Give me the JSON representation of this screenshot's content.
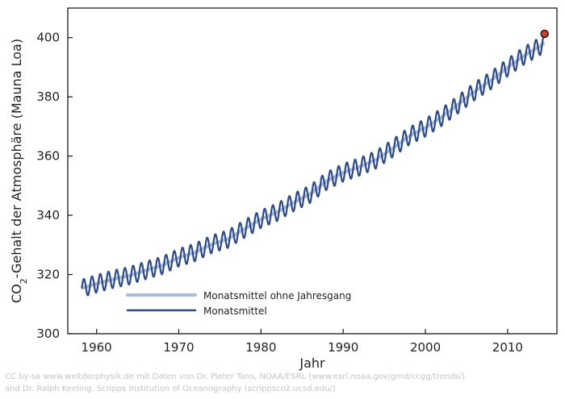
{
  "chart_data": {
    "type": "line",
    "title": "",
    "xlabel": "Jahr",
    "ylabel_prefix": "CO",
    "ylabel_sub": "2",
    "ylabel_suffix": "-Gehalt der Atmosphäre (Mauna Loa)",
    "xlim": [
      1956.5,
      2016.0
    ],
    "ylim": [
      300,
      410
    ],
    "x_ticks": [
      1960,
      1970,
      1980,
      1990,
      2000,
      2010
    ],
    "x_tick_labels": [
      "1960",
      "1970",
      "1980",
      "1990",
      "2000",
      "2010"
    ],
    "y_ticks": [
      300,
      320,
      340,
      360,
      380,
      400
    ],
    "y_tick_labels": [
      "300",
      "320",
      "340",
      "360",
      "380",
      "400"
    ],
    "grid": false,
    "legend": {
      "position": "lower-left",
      "entries": [
        {
          "label": "Monatsmittel ohne Jahresgang",
          "color": "#aabbe0"
        },
        {
          "label": "Monatsmittel",
          "color": "#2a4a8c"
        }
      ]
    },
    "series": [
      {
        "name": "Monatsmittel ohne Jahresgang",
        "color": "#aabbe0",
        "x": [
          1958.2,
          1960,
          1962,
          1964,
          1966,
          1968,
          1970,
          1972,
          1974,
          1976,
          1978,
          1980,
          1982,
          1984,
          1986,
          1988,
          1990,
          1992,
          1994,
          1996,
          1998,
          2000,
          2002,
          2004,
          2006,
          2008,
          2010,
          2012,
          2014,
          2014.5
        ],
        "values": [
          315.3,
          316.9,
          318.4,
          319.6,
          321.4,
          323.1,
          325.7,
          327.5,
          330.2,
          332.0,
          335.4,
          338.7,
          341.1,
          344.4,
          347.2,
          351.6,
          354.4,
          356.4,
          358.8,
          362.6,
          366.7,
          369.6,
          373.2,
          377.5,
          381.9,
          385.6,
          389.9,
          393.9,
          397.2,
          398.5
        ]
      },
      {
        "name": "Monatsmittel",
        "color": "#2a4a8c",
        "seasonal_amplitude_ppm": 3.0,
        "x": [
          1958.2,
          1960,
          1962,
          1964,
          1966,
          1968,
          1970,
          1972,
          1974,
          1976,
          1978,
          1980,
          1982,
          1984,
          1986,
          1988,
          1990,
          1992,
          1994,
          1996,
          1998,
          2000,
          2002,
          2004,
          2006,
          2008,
          2010,
          2012,
          2014,
          2014.5
        ],
        "values": [
          315.3,
          316.9,
          318.4,
          319.6,
          321.4,
          323.1,
          325.7,
          327.5,
          330.2,
          332.0,
          335.4,
          338.7,
          341.1,
          344.4,
          347.2,
          351.6,
          354.4,
          356.4,
          358.8,
          362.6,
          366.7,
          369.6,
          373.2,
          377.5,
          381.9,
          385.6,
          389.9,
          393.9,
          397.2,
          398.5
        ]
      }
    ],
    "highlight_point": {
      "x": 2014.5,
      "y": 401.3,
      "color": "#d63a2a"
    }
  },
  "credits": {
    "line1": "CC by-sa www.weltderphysik.de mit Daten von Dr. Pieter Tans, NOAA/ESRL (www.esrl.noaa.gov/gmd/ccgg/trends/)",
    "line2": "and Dr. Ralph Keeling, Scripps Institution of Oceanography (scrippsco2.ucsd.edu/)"
  }
}
